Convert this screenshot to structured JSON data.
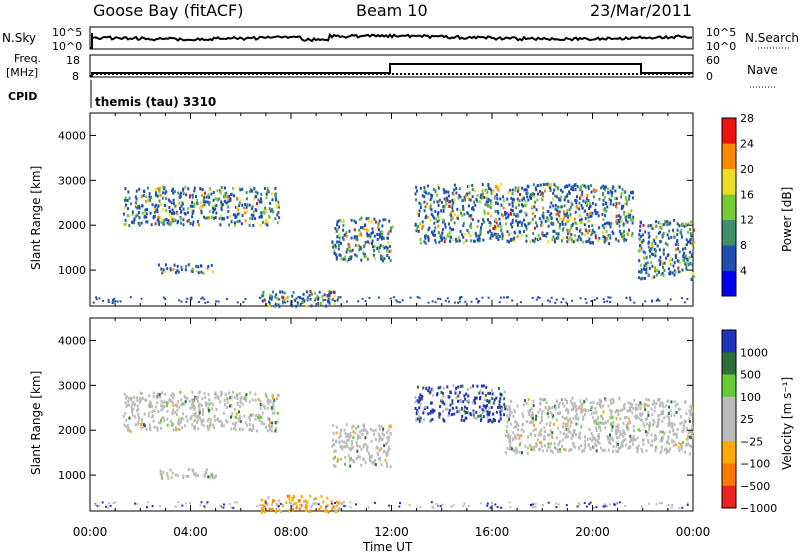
{
  "header": {
    "station": "Goose Bay (fitACF)",
    "beam": "Beam 10",
    "date": "23/Mar/2011"
  },
  "top_panels": {
    "nsky_label": "N.Sky",
    "nsky_ticks": [
      "10^5",
      "10^0"
    ],
    "nsearch_label": "N.Search",
    "nsearch_ticks": [
      "10^5",
      "10^0"
    ],
    "freq_label_1": "Freq.",
    "freq_label_2": "[MHz]",
    "freq_ticks": [
      "18",
      "8"
    ],
    "nave_label": "Nave",
    "nave_ticks": [
      "60",
      "0"
    ],
    "cpid_label": "CPID",
    "cpid_text": "themis (tau) 3310"
  },
  "chart_data": [
    {
      "type": "heatmap",
      "name": "power",
      "ylabel": "Slant Range [km]",
      "yticks": [
        "1000",
        "2000",
        "3000",
        "4000"
      ],
      "ylim": [
        200,
        4500
      ],
      "colorbar_label": "Power [dB]",
      "colorbar_ticks": [
        "4",
        "8",
        "12",
        "16",
        "20",
        "24",
        "28"
      ],
      "colors": [
        "#0000ee",
        "#1e4fb0",
        "#3f8f6a",
        "#77cc33",
        "#eedd22",
        "#ff8800",
        "#ee1111"
      ],
      "echo_regions": [
        {
          "t": [
            1.3,
            7.5
          ],
          "range": [
            2000,
            2850
          ]
        },
        {
          "t": [
            2.7,
            5.0
          ],
          "range": [
            950,
            1150
          ]
        },
        {
          "t": [
            9.6,
            12.0
          ],
          "range": [
            1200,
            2150
          ]
        },
        {
          "t": [
            12.9,
            21.6
          ],
          "range": [
            1600,
            2900
          ]
        },
        {
          "t": [
            21.8,
            24.0
          ],
          "range": [
            800,
            2100
          ]
        },
        {
          "t": [
            6.8,
            10.0
          ],
          "range": [
            200,
            550
          ]
        }
      ]
    },
    {
      "type": "heatmap",
      "name": "velocity",
      "ylabel": "Slant Range [km]",
      "xlabel": "Time UT",
      "yticks": [
        "1000",
        "2000",
        "3000",
        "4000"
      ],
      "xticks": [
        "00:00",
        "04:00",
        "08:00",
        "12:00",
        "16:00",
        "20:00",
        "00:00"
      ],
      "xlim_hours": [
        0,
        24
      ],
      "ylim": [
        200,
        4500
      ],
      "colorbar_label": "Velocity [m s⁻¹]",
      "colorbar_ticks": [
        "1000",
        "500",
        "100",
        "25",
        "−25",
        "−100",
        "−500",
        "−1000"
      ],
      "colors": [
        "#2233bb",
        "#2d6f3a",
        "#66cc33",
        "#bbbbbb",
        "#bbbbbb",
        "#ffaa00",
        "#ff7700",
        "#ee2222"
      ],
      "echo_regions": [
        {
          "t": [
            1.3,
            7.5
          ],
          "range": [
            2000,
            2850
          ],
          "velocity": "gray"
        },
        {
          "t": [
            2.7,
            5.0
          ],
          "range": [
            950,
            1150
          ],
          "velocity": "gray"
        },
        {
          "t": [
            9.6,
            12.0
          ],
          "range": [
            1200,
            2150
          ],
          "velocity": "gray"
        },
        {
          "t": [
            12.9,
            16.5
          ],
          "range": [
            2200,
            3000
          ],
          "velocity": "positive"
        },
        {
          "t": [
            16.5,
            24.0
          ],
          "range": [
            1500,
            2700
          ],
          "velocity": "gray"
        },
        {
          "t": [
            6.8,
            10.0
          ],
          "range": [
            200,
            550
          ],
          "velocity": "negative"
        }
      ]
    }
  ]
}
